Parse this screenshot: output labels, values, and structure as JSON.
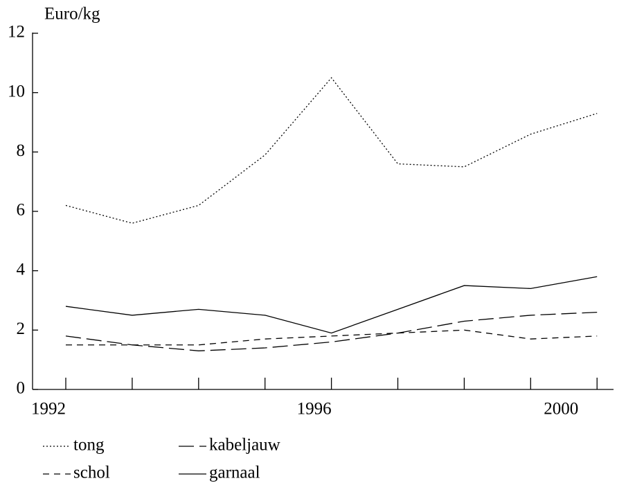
{
  "chart_data": {
    "type": "line",
    "y_label": "Euro/kg",
    "categories": [
      "1992",
      null,
      null,
      null,
      "1996",
      null,
      null,
      null,
      "2000"
    ],
    "ylim": [
      0,
      12
    ],
    "yticks": [
      0,
      2,
      4,
      6,
      8,
      10,
      12
    ],
    "series": [
      {
        "name": "tong",
        "color": "#000000",
        "style": "dotted",
        "values": [
          6.2,
          5.6,
          6.2,
          7.9,
          10.5,
          7.6,
          7.5,
          8.6,
          9.3
        ]
      },
      {
        "name": "schol",
        "color": "#000000",
        "style": "dashed",
        "values": [
          1.5,
          1.5,
          1.5,
          1.7,
          1.8,
          1.9,
          2.0,
          1.7,
          1.8
        ]
      },
      {
        "name": "kabeljauw",
        "color": "#000000",
        "style": "longdash",
        "values": [
          1.8,
          1.5,
          1.3,
          1.4,
          1.6,
          1.9,
          2.3,
          2.5,
          2.6
        ]
      },
      {
        "name": "garnaal",
        "color": "#000000",
        "style": "solid",
        "values": [
          2.8,
          2.5,
          2.7,
          2.5,
          1.9,
          2.7,
          3.5,
          3.4,
          3.8
        ]
      }
    ]
  }
}
